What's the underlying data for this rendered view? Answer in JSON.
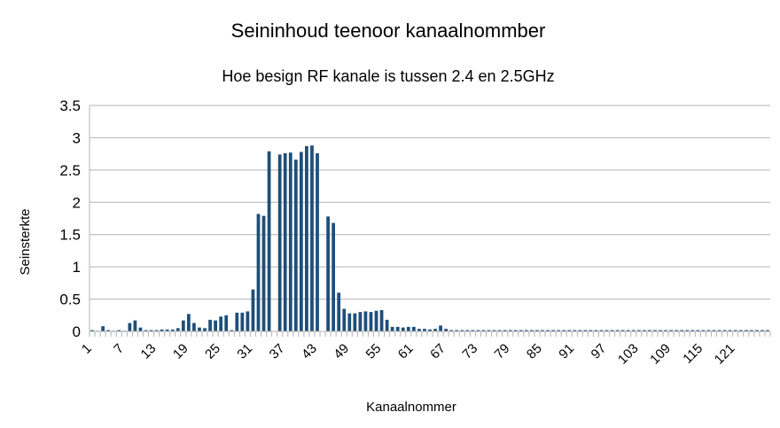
{
  "chart_data": {
    "type": "bar",
    "title": "Seininhoud teenoor kanaalnommber",
    "subtitle": "Hoe besign RF kanale is tussen 2.4 en 2.5GHz",
    "xlabel": "Kanaalnommer",
    "ylabel": "Seinsterkte",
    "ylim": [
      0,
      3.5
    ],
    "yticks": [
      0,
      0.5,
      1,
      1.5,
      2,
      2.5,
      3,
      3.5
    ],
    "ytick_labels": [
      "0",
      "0.5",
      "1",
      "1.5",
      "2",
      "2.5",
      "3",
      "3.5"
    ],
    "xtick_labels": [
      "1",
      "7",
      "13",
      "19",
      "25",
      "31",
      "37",
      "43",
      "49",
      "55",
      "61",
      "67",
      "73",
      "79",
      "85",
      "91",
      "97",
      "103",
      "109",
      "115",
      "121"
    ],
    "grid": true,
    "bar_color": "#1f4e79",
    "categories": [
      1,
      2,
      3,
      4,
      5,
      6,
      7,
      8,
      9,
      10,
      11,
      12,
      13,
      14,
      15,
      16,
      17,
      18,
      19,
      20,
      21,
      22,
      23,
      24,
      25,
      26,
      27,
      28,
      29,
      30,
      31,
      32,
      33,
      34,
      35,
      36,
      37,
      38,
      39,
      40,
      41,
      42,
      43,
      44,
      45,
      46,
      47,
      48,
      49,
      50,
      51,
      52,
      53,
      54,
      55,
      56,
      57,
      58,
      59,
      60,
      61,
      62,
      63,
      64,
      65,
      66,
      67,
      68,
      69,
      70,
      71,
      72,
      73,
      74,
      75,
      76,
      77,
      78,
      79,
      80,
      81,
      82,
      83,
      84,
      85,
      86,
      87,
      88,
      89,
      90,
      91,
      92,
      93,
      94,
      95,
      96,
      97,
      98,
      99,
      100,
      101,
      102,
      103,
      104,
      105,
      106,
      107,
      108,
      109,
      110,
      111,
      112,
      113,
      114,
      115,
      116,
      117,
      118,
      119,
      120,
      121,
      122,
      123,
      124,
      125,
      126,
      127
    ],
    "values": [
      0.02,
      0.01,
      0.08,
      0.02,
      0.01,
      0.02,
      0.01,
      0.13,
      0.17,
      0.06,
      0.02,
      0.02,
      0.02,
      0.03,
      0.03,
      0.03,
      0.05,
      0.17,
      0.27,
      0.13,
      0.06,
      0.05,
      0.18,
      0.17,
      0.23,
      0.25,
      0.02,
      0.29,
      0.29,
      0.31,
      0.65,
      1.82,
      1.79,
      2.79,
      0.0,
      2.74,
      2.76,
      2.77,
      2.66,
      2.78,
      2.87,
      2.88,
      2.76,
      0.0,
      1.78,
      1.68,
      0.6,
      0.35,
      0.28,
      0.28,
      0.3,
      0.31,
      0.3,
      0.32,
      0.33,
      0.18,
      0.07,
      0.07,
      0.06,
      0.07,
      0.07,
      0.04,
      0.04,
      0.03,
      0.04,
      0.09,
      0.04,
      0.02,
      0.02,
      0.02,
      0.02,
      0.02,
      0.02,
      0.02,
      0.02,
      0.02,
      0.02,
      0.02,
      0.02,
      0.02,
      0.02,
      0.02,
      0.02,
      0.02,
      0.02,
      0.02,
      0.02,
      0.02,
      0.02,
      0.02,
      0.02,
      0.02,
      0.02,
      0.02,
      0.02,
      0.02,
      0.02,
      0.02,
      0.02,
      0.02,
      0.02,
      0.02,
      0.02,
      0.02,
      0.02,
      0.02,
      0.02,
      0.02,
      0.02,
      0.02,
      0.02,
      0.02,
      0.02,
      0.02,
      0.02,
      0.02,
      0.02,
      0.02,
      0.02,
      0.02,
      0.02,
      0.02,
      0.02,
      0.02,
      0.02,
      0.02,
      0.02
    ]
  }
}
